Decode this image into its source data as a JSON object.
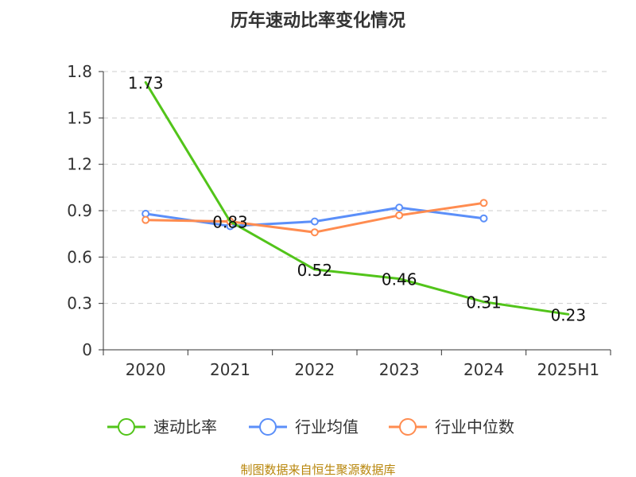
{
  "chart_data": {
    "type": "line",
    "title": "历年速动比率变化情况",
    "categories": [
      "2020",
      "2021",
      "2022",
      "2023",
      "2024",
      "2025H1"
    ],
    "y_ticks": [
      "0",
      "0.3",
      "0.6",
      "0.9",
      "1.2",
      "1.5",
      "1.8"
    ],
    "ylim": [
      0,
      1.8
    ],
    "grid": true,
    "legend_position": "bottom",
    "series": [
      {
        "name": "速动比率",
        "color": "#52c41a",
        "values": [
          1.73,
          0.83,
          0.52,
          0.46,
          0.31,
          0.23
        ],
        "labels": [
          "1.73",
          "0.83",
          "0.52",
          "0.46",
          "0.31",
          "0.23"
        ],
        "markers": false
      },
      {
        "name": "行业均值",
        "color": "#5b8ff9",
        "values": [
          0.88,
          0.8,
          0.83,
          0.92,
          0.85,
          null
        ],
        "markers": true
      },
      {
        "name": "行业中位数",
        "color": "#ff8c50",
        "values": [
          0.84,
          0.83,
          0.76,
          0.87,
          0.95,
          null
        ],
        "markers": true
      }
    ],
    "source": "制图数据来自恒生聚源数据库"
  }
}
